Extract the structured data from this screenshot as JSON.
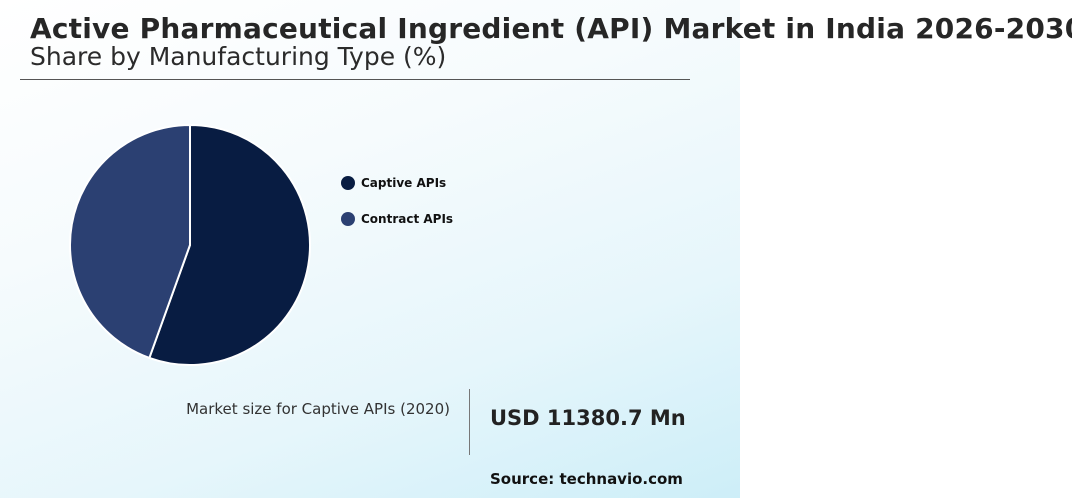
{
  "header": {
    "title": "Active Pharmaceutical Ingredient (API) Market in India 2026-2030",
    "subtitle": "Share by Manufacturing Type (%)"
  },
  "chart_data": {
    "type": "pie",
    "categories": [
      "Captive APIs",
      "Contract APIs"
    ],
    "values": [
      55.5,
      44.5
    ],
    "colors": [
      "#081c42",
      "#2b4072"
    ],
    "legend_position": "right"
  },
  "stat": {
    "label": "Market size for Captive APIs (2020)",
    "value": "USD 11380.7 Mn"
  },
  "footer": {
    "source": "Source: technavio.com"
  }
}
